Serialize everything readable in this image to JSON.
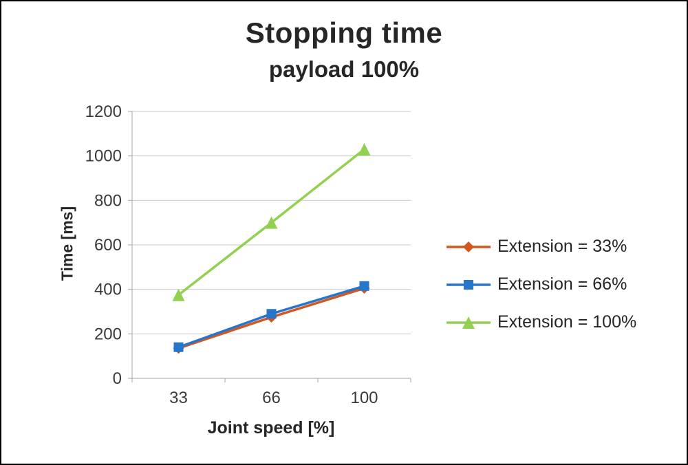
{
  "chart_data": {
    "type": "line",
    "title": "Stopping time",
    "subtitle": "payload 100%",
    "xlabel": "Joint speed [%]",
    "ylabel": "Time [ms]",
    "x": [
      33,
      66,
      100
    ],
    "ylim": [
      0,
      1200
    ],
    "ytick_step": 200,
    "grid": true,
    "legend_position": "right",
    "series": [
      {
        "name": "Extension = 33%",
        "values": [
          135,
          275,
          405
        ],
        "color": "#d2571f",
        "marker": "diamond"
      },
      {
        "name": "Extension = 66%",
        "values": [
          140,
          290,
          415
        ],
        "color": "#2776cb",
        "marker": "square"
      },
      {
        "name": "Extension = 100%",
        "values": [
          375,
          700,
          1030
        ],
        "color": "#92d050",
        "marker": "triangle"
      }
    ],
    "colors": {
      "text": "#3a3a3a",
      "title_text": "#262626",
      "gridline": "#c8c8c8",
      "axis": "#a6a6a6",
      "background": "#ffffff",
      "border": "#000000"
    }
  }
}
